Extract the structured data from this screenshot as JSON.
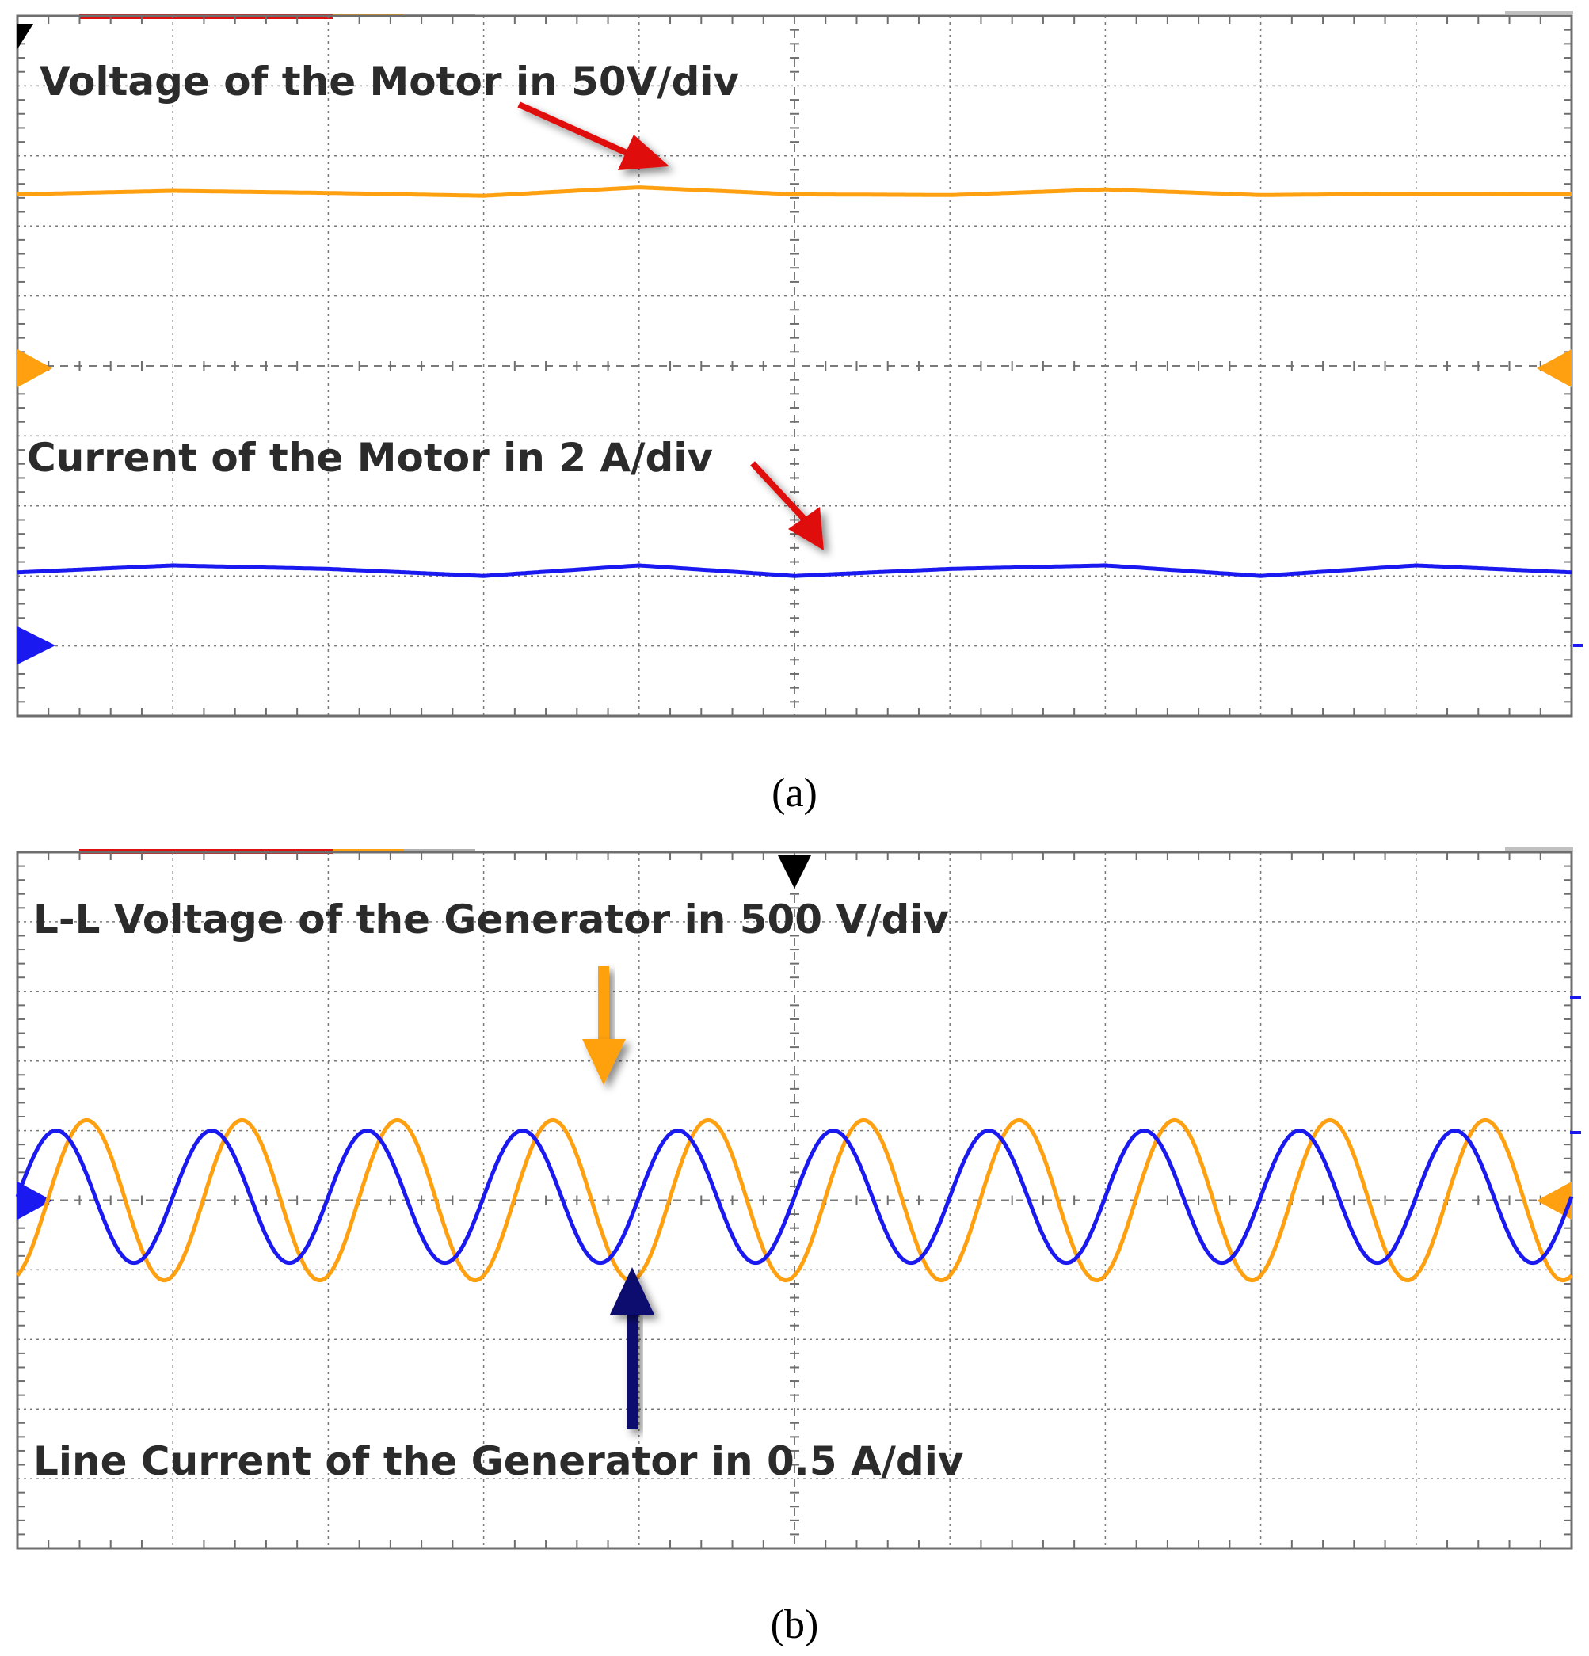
{
  "colors": {
    "orange": "#FFA010",
    "blue": "#1A1AF0",
    "navy": "#101070",
    "red": "#E01010",
    "grid": "#7a7a7a",
    "frame": "#6e6e6e"
  },
  "chart_data": [
    {
      "type": "line",
      "panel_label": "(a)",
      "grid": true,
      "divisions": {
        "x": 10,
        "y": 10
      },
      "xlim": [
        0,
        10
      ],
      "ylim": [
        -5,
        5
      ],
      "series": [
        {
          "name": "Voltage of the Motor in 50V/div",
          "color": "orange",
          "ripple_cycles": 4,
          "x": [
            0,
            1,
            2,
            3,
            4,
            5,
            6,
            7,
            8,
            9,
            10
          ],
          "y": [
            2.45,
            2.5,
            2.47,
            2.43,
            2.55,
            2.45,
            2.44,
            2.52,
            2.44,
            2.46,
            2.45
          ]
        },
        {
          "name": "Current of the Motor in 2 A/div",
          "color": "blue",
          "ripple_cycles": 4,
          "x": [
            0,
            1,
            2,
            3,
            4,
            5,
            6,
            7,
            8,
            9,
            10
          ],
          "y": [
            -2.95,
            -2.85,
            -2.9,
            -3.0,
            -2.85,
            -3.0,
            -2.9,
            -2.85,
            -3.0,
            -2.85,
            -2.95
          ]
        }
      ],
      "annotations": [
        {
          "text": "Voltage of the Motor in 50V/div",
          "target_series": "Voltage of the Motor in 50V/div",
          "arrow_color": "red"
        },
        {
          "text": "Current of the Motor in 2 A/div",
          "target_series": "Current of the Motor in 2 A/div",
          "arrow_color": "red"
        }
      ]
    },
    {
      "type": "line",
      "panel_label": "(b)",
      "grid": true,
      "divisions": {
        "x": 10,
        "y": 10
      },
      "xlim": [
        0,
        10
      ],
      "ylim": [
        -5,
        5
      ],
      "series": [
        {
          "name": "L-L Voltage of the Generator in 500 V/div",
          "color": "orange",
          "waveform": "sine",
          "cycles": 10,
          "amplitude_div": 1.15,
          "offset_div": 0,
          "phase_deg": -70
        },
        {
          "name": "Line Current of the Generator in 0.5 A/div",
          "color": "blue",
          "waveform": "sine",
          "cycles": 10,
          "amplitude_div": 0.95,
          "offset_div": 0.05,
          "phase_deg": 0
        }
      ],
      "annotations": [
        {
          "text": "L-L Voltage of the Generator in 500 V/div",
          "target_series": "L-L Voltage of the Generator in 500 V/div",
          "arrow_color": "orange"
        },
        {
          "text": "Line Current of the Generator in 0.5 A/div",
          "target_series": "Line Current of the Generator in 0.5 A/div",
          "arrow_color": "navy"
        }
      ]
    }
  ]
}
